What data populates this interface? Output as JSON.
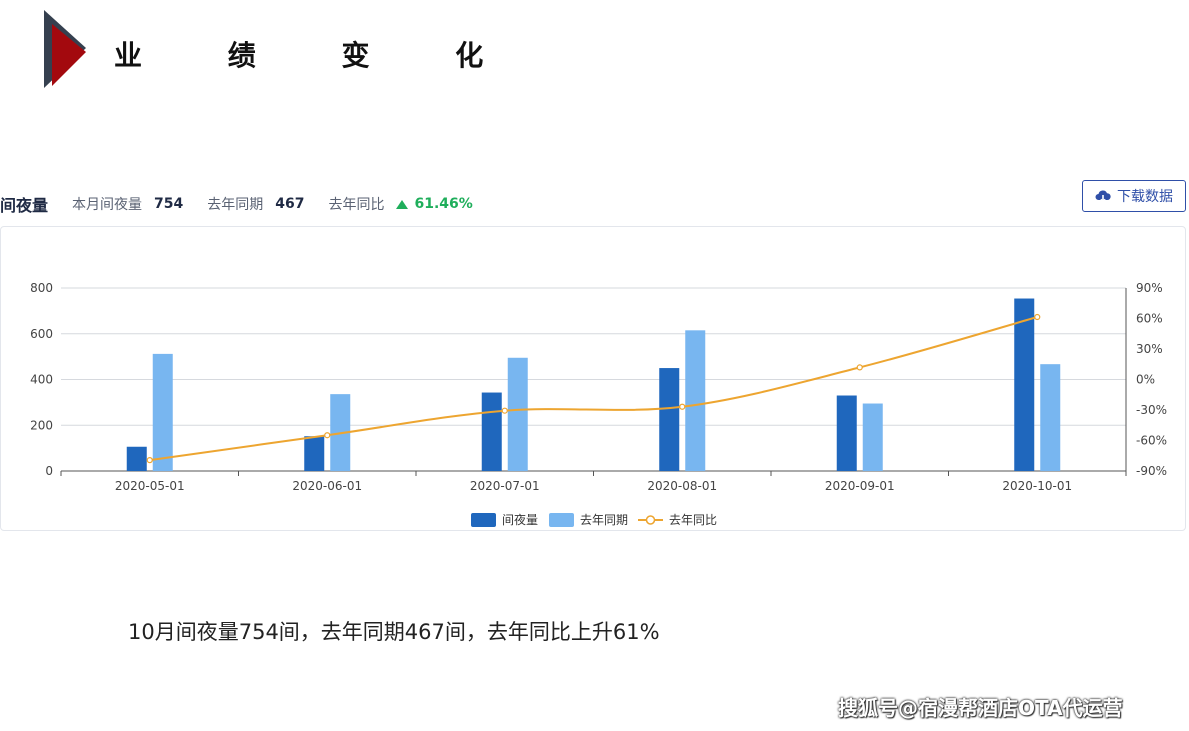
{
  "header": {
    "title": "业 绩 变 化"
  },
  "stats": {
    "metric_name": "间夜量",
    "current_label": "本月间夜量",
    "current_value": "754",
    "last_year_label": "去年同期",
    "last_year_value": "467",
    "yoy_label": "去年同比",
    "yoy_value": "61.46%"
  },
  "download_button": {
    "label": "下载数据"
  },
  "caption": "10月间夜量754间，去年同期467间，去年同比上升61%",
  "watermark": "搜狐号@宿漫帮酒店OTA代运营",
  "colors": {
    "bar_current": "#1f67bd",
    "bar_last_year": "#78b6f0",
    "line_yoy": "#eda530",
    "accent": "#2f4fa8",
    "up": "#1fae5b"
  },
  "chart_data": {
    "type": "bar",
    "categories": [
      "2020-05-01",
      "2020-06-01",
      "2020-07-01",
      "2020-08-01",
      "2020-09-01",
      "2020-10-01"
    ],
    "series": [
      {
        "name": "间夜量",
        "type": "bar",
        "axis": "left",
        "values": [
          106,
          152,
          343,
          450,
          330,
          754
        ]
      },
      {
        "name": "去年同期",
        "type": "bar",
        "axis": "left",
        "values": [
          512,
          336,
          495,
          615,
          295,
          467
        ]
      },
      {
        "name": "去年同比",
        "type": "line",
        "axis": "right",
        "values": [
          -79.3,
          -54.8,
          -30.7,
          -26.8,
          11.9,
          61.46
        ]
      }
    ],
    "ylim": [
      0,
      800
    ],
    "y_ticks": [
      0,
      200,
      400,
      600,
      800
    ],
    "y2lim": [
      -90,
      90
    ],
    "y2_ticks": [
      "-90%",
      "-60%",
      "-30%",
      "0%",
      "30%",
      "60%",
      "90%"
    ],
    "grid": true,
    "legend": "bottom-center"
  }
}
